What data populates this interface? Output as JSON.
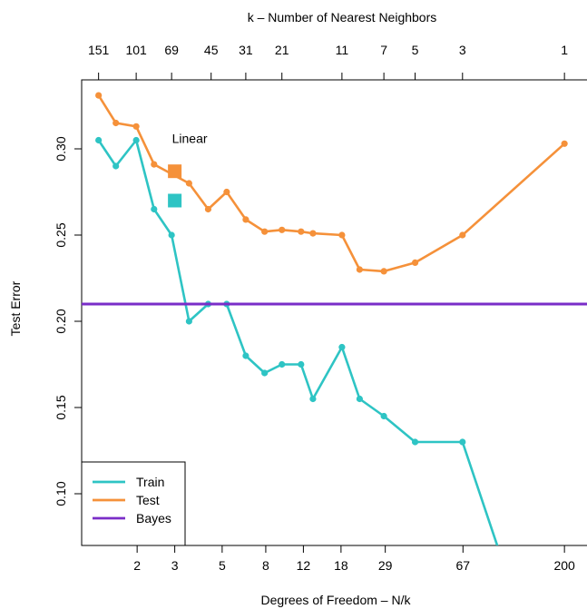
{
  "chart_data": {
    "type": "line",
    "title": "k –  Number of Nearest Neighbors",
    "xlabel": "Degrees of Freedom – N/k",
    "ylabel": "Test Error",
    "x_scale": "log",
    "ylim": [
      0.07,
      0.34
    ],
    "grid": false,
    "legend_position": "bottom-left",
    "bottom_ticks": [
      2,
      3,
      5,
      8,
      12,
      18,
      29,
      67,
      200
    ],
    "top_ticks": [
      151,
      101,
      69,
      45,
      31,
      21,
      11,
      7,
      5,
      3,
      1
    ],
    "top_ticks_label_dof": [
      1.32,
      1.98,
      2.9,
      4.44,
      6.45,
      9.52,
      18.18,
      28.57,
      40,
      66.67,
      200
    ],
    "y_ticks": [
      0.1,
      0.15,
      0.2,
      0.25,
      0.3
    ],
    "colors": {
      "train": "#2ec4c4",
      "test": "#f5913a",
      "bayes": "#7a2dc8"
    },
    "series": [
      {
        "name": "Train",
        "color": "#2ec4c4",
        "x": [
          1.32,
          1.59,
          1.98,
          2.4,
          2.9,
          3.5,
          4.3,
          5.25,
          6.45,
          7.9,
          9.52,
          11.7,
          13.3,
          18.18,
          22,
          28.57,
          40,
          66.67,
          100
        ],
        "y": [
          0.305,
          0.29,
          0.305,
          0.265,
          0.25,
          0.2,
          0.21,
          0.21,
          0.18,
          0.17,
          0.175,
          0.175,
          0.155,
          0.185,
          0.155,
          0.145,
          0.13,
          0.13,
          0.065
        ]
      },
      {
        "name": "Test",
        "color": "#f5913a",
        "x": [
          1.32,
          1.59,
          1.98,
          2.4,
          3.5,
          4.3,
          5.25,
          6.45,
          7.9,
          9.52,
          11.7,
          13.3,
          18.18,
          22,
          28.57,
          40,
          66.67,
          200
        ],
        "y": [
          0.331,
          0.315,
          0.313,
          0.291,
          0.28,
          0.265,
          0.275,
          0.259,
          0.252,
          0.253,
          0.252,
          0.251,
          0.25,
          0.23,
          0.229,
          0.234,
          0.25,
          0.303
        ]
      },
      {
        "name": "Bayes",
        "color": "#7a2dc8",
        "y": 0.21
      }
    ],
    "linear_points": [
      {
        "series": "Test",
        "x": 3,
        "y": 0.287
      },
      {
        "series": "Train",
        "x": 3,
        "y": 0.27
      }
    ],
    "annotations": [
      {
        "text": "Linear",
        "x": 3,
        "y": 0.297
      }
    ],
    "legend": [
      "Train",
      "Test",
      "Bayes"
    ]
  }
}
